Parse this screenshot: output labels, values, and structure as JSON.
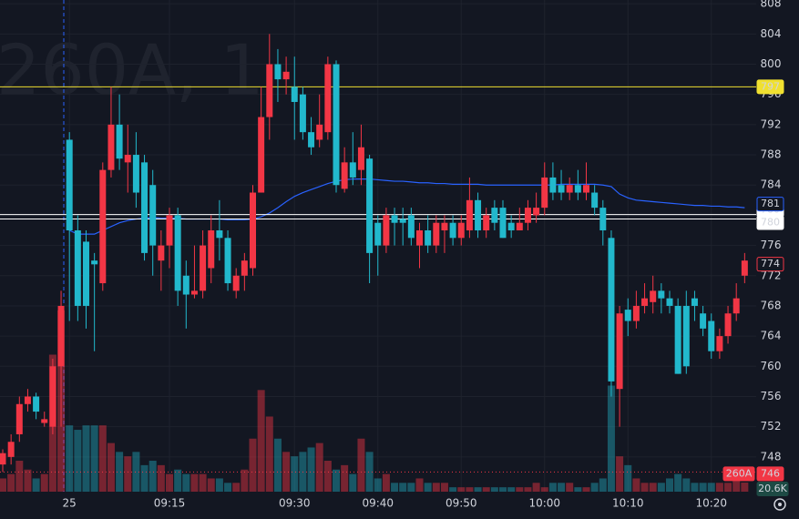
{
  "chart_data": {
    "type": "candlestick",
    "symbol_watermark": "260A, 1",
    "open": [
      747,
      748,
      751,
      755,
      756,
      752.5,
      752,
      760,
      790,
      778,
      776.5,
      774,
      771,
      786,
      792,
      787,
      788,
      787,
      784,
      774,
      776,
      780,
      772,
      769.5,
      770,
      773,
      778,
      777,
      770,
      772,
      773,
      783,
      793,
      800,
      798,
      797,
      796,
      791,
      790,
      791,
      800,
      783.5,
      787,
      786,
      787.5,
      779,
      776,
      780,
      779.5,
      780,
      776,
      778,
      776,
      778,
      779,
      777,
      778,
      782,
      778,
      781,
      781,
      779,
      778,
      779,
      780,
      781,
      785,
      784,
      783,
      784,
      783,
      783,
      781,
      777,
      757,
      767.5,
      766,
      768,
      768.5,
      770,
      769,
      768,
      768,
      769,
      767,
      766,
      762,
      764,
      767,
      772
    ],
    "high": [
      749,
      751,
      756,
      757,
      756.5,
      754,
      761,
      770,
      791,
      780,
      778,
      775,
      787,
      797,
      796,
      792,
      791,
      788,
      786,
      778,
      781,
      781,
      774,
      776,
      778,
      780,
      782,
      778,
      773,
      775,
      784,
      797,
      804,
      802,
      801,
      801,
      797,
      793,
      796,
      801,
      800.5,
      789,
      791,
      792,
      788,
      780,
      781,
      781,
      781,
      781,
      779,
      780,
      780,
      780,
      780,
      780,
      785,
      783,
      781,
      782,
      782,
      780,
      781,
      782,
      783,
      787,
      787,
      786,
      785,
      786,
      787,
      784,
      782,
      778,
      768,
      769,
      770,
      771,
      772,
      771,
      770,
      769,
      770,
      770,
      768,
      767,
      765,
      768,
      771,
      775
    ],
    "low": [
      746,
      747,
      750,
      754,
      753,
      752,
      751,
      752,
      766,
      766,
      765,
      762,
      770,
      785,
      786,
      783,
      781,
      774,
      772,
      770,
      773,
      768,
      765,
      769,
      769,
      771,
      774,
      770,
      769,
      770,
      772,
      783,
      790,
      795,
      796,
      790,
      790,
      788,
      789,
      790,
      783,
      783,
      784,
      784,
      771,
      772,
      775,
      776,
      776,
      776,
      773,
      775,
      775,
      775,
      776,
      776,
      777,
      777,
      777,
      778,
      777,
      777,
      778,
      778,
      779,
      780,
      782,
      782,
      782,
      782,
      782,
      780,
      776,
      756,
      752,
      764,
      765,
      767,
      767,
      767,
      767,
      759,
      759,
      766,
      764,
      761,
      761,
      763,
      766,
      771
    ],
    "close": [
      748.5,
      750,
      755,
      756,
      754,
      753,
      760,
      768,
      778,
      768,
      768,
      773.5,
      786,
      792,
      787.5,
      788,
      783,
      775,
      776,
      776,
      780,
      770,
      769.5,
      770,
      776,
      778,
      777,
      771,
      772,
      774,
      783,
      793,
      800,
      798,
      799,
      795,
      791,
      789,
      792,
      800,
      784,
      787,
      785,
      789,
      775,
      776,
      780,
      779,
      779,
      777,
      778,
      776,
      779,
      779,
      777,
      779,
      782,
      778,
      780,
      779,
      777,
      778,
      779,
      781,
      781,
      785,
      783,
      783,
      784,
      783,
      784,
      781,
      778,
      758,
      767,
      766,
      768,
      769,
      770,
      769,
      768,
      759,
      760,
      768,
      765,
      762,
      764,
      767,
      769,
      774
    ],
    "volume": [
      30000,
      40000,
      70000,
      50000,
      30000,
      40000,
      310000,
      410000,
      150000,
      140000,
      150000,
      150000,
      150000,
      110000,
      90000,
      80000,
      90000,
      60000,
      70000,
      60000,
      40000,
      50000,
      40000,
      40000,
      40000,
      30000,
      30000,
      20000,
      20000,
      50000,
      120000,
      230000,
      170000,
      120000,
      90000,
      80000,
      90000,
      100000,
      110000,
      70000,
      50000,
      60000,
      40000,
      120000,
      90000,
      30000,
      40000,
      20000,
      20000,
      20000,
      30000,
      20000,
      20000,
      20000,
      10000,
      10000,
      10000,
      10000,
      10000,
      10000,
      10000,
      10000,
      10000,
      10000,
      20000,
      10000,
      20000,
      20000,
      20000,
      10000,
      10000,
      20000,
      30000,
      240000,
      80000,
      60000,
      30000,
      20000,
      20000,
      20000,
      30000,
      40000,
      30000,
      20000,
      20000,
      20000,
      20000,
      20000,
      30000,
      20600
    ],
    "volume_label": "20.6K",
    "volume_lim": [
      0,
      412000
    ],
    "up_color": "#f23645",
    "down_color": "#22b8cc",
    "vwap": {
      "color": "#2962ff",
      "last_label": "781",
      "values": [
        null,
        null,
        null,
        null,
        null,
        null,
        null,
        null,
        778,
        777.5,
        777.5,
        777.5,
        778,
        778.5,
        779,
        779.3,
        779.5,
        779.6,
        779.7,
        779.6,
        779.6,
        779.6,
        779.5,
        779.5,
        779.5,
        779.5,
        779.5,
        779.4,
        779.4,
        779.4,
        779.5,
        779.8,
        780.3,
        781,
        781.8,
        782.5,
        783,
        783.4,
        783.8,
        784.2,
        784.5,
        784.7,
        784.8,
        784.8,
        784.8,
        784.7,
        784.6,
        784.5,
        784.5,
        784.4,
        784.3,
        784.3,
        784.2,
        784.2,
        784.1,
        784.1,
        784.1,
        784.1,
        784,
        784,
        784,
        784,
        784,
        784,
        784,
        784,
        784,
        784.1,
        784.1,
        784.1,
        784.1,
        784.1,
        784,
        783.8,
        782.8,
        782.3,
        782,
        781.9,
        781.8,
        781.7,
        781.6,
        781.5,
        781.4,
        781.3,
        781.3,
        781.2,
        781.2,
        781.1,
        781.1,
        781
      ]
    },
    "hlines": [
      {
        "value": 797,
        "color": "#f0e030"
      },
      {
        "value": 780.1,
        "label": "780",
        "color": "#ffffff"
      },
      {
        "value": 779.5,
        "label": "780",
        "color": "#ffffff"
      }
    ],
    "compare": {
      "name": "260A",
      "value": 746,
      "color": "#f23645"
    },
    "ylim": [
      743.4,
      808.5
    ],
    "yticks": [
      808,
      804,
      800,
      796,
      792,
      788,
      784,
      780,
      776,
      772,
      768,
      764,
      760,
      756,
      752,
      748
    ],
    "xticks": [
      {
        "value": 8,
        "label": "25"
      },
      {
        "value": 20,
        "label": "09:15"
      },
      {
        "value": 35,
        "label": "09:30"
      },
      {
        "value": 45,
        "label": "09:40"
      },
      {
        "value": 55,
        "label": "09:50"
      },
      {
        "value": 65,
        "label": "10:00"
      },
      {
        "value": 75,
        "label": "10:10"
      },
      {
        "value": 85,
        "label": "10:20"
      }
    ],
    "grid": true
  }
}
